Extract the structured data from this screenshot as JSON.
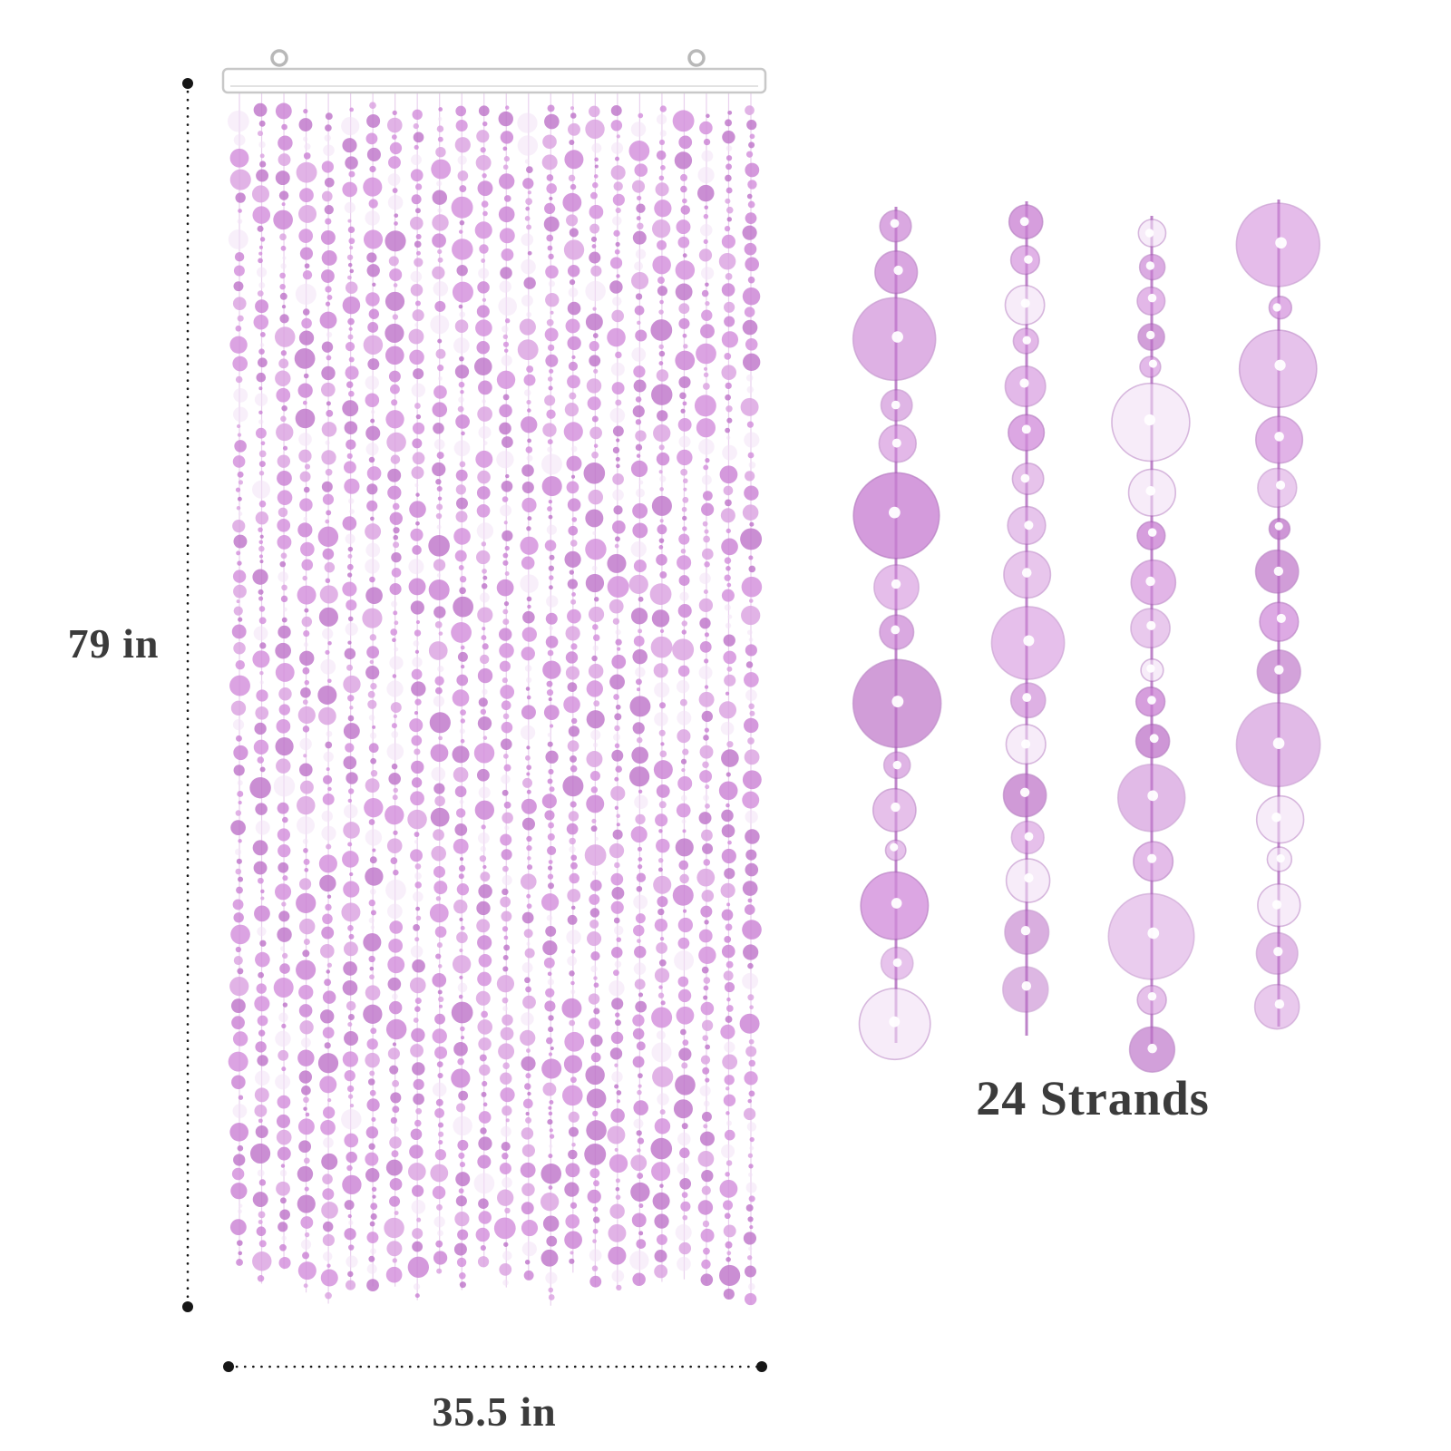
{
  "image": {
    "description": "Beaded door curtain product illustration with dimension annotations and strand close-up",
    "background": "#ffffff"
  },
  "curtain": {
    "strand_count": 24,
    "rod_color": "#ffffff",
    "rod_stroke": "#c8c8c8",
    "rod_inner_line": "#e2e2e2",
    "hook_color": "#b8b8b8",
    "string_color": "#dcb3e3",
    "bead_palette": [
      "#c97fd3",
      "#d28cdb",
      "#bd72c8",
      "#d9a0e0"
    ],
    "bead_light": "#f2e1f6",
    "bead_stroke": "#a35bb0",
    "closeup_string_color": "#b36fc0"
  },
  "dimensions": {
    "height_label": "79 in",
    "width_label": "35.5 in",
    "line_color": "#161616",
    "label_color": "#3b3b3b"
  },
  "closeup": {
    "strand_count": 4,
    "caption": "24 Strands"
  }
}
